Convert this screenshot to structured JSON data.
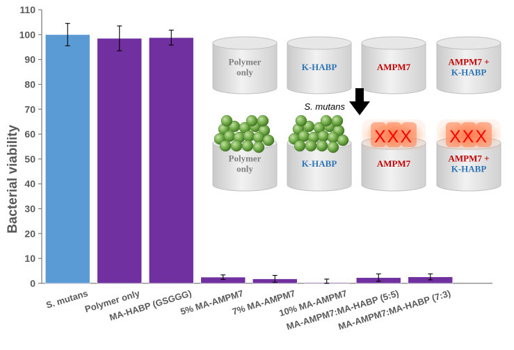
{
  "colors": {
    "control_bar": "#5b9bd5",
    "treatment_bar": "#7030a0",
    "axis": "#7f7f7f",
    "label_gray": "#7f7f7f",
    "label_blue": "#2e75b6",
    "label_red": "#c00000",
    "bacteria_green": "#70ad47",
    "x_mark": "#ff0000"
  },
  "chart_data": {
    "type": "bar",
    "ylabel": "Bacterial viability",
    "ylim": [
      0,
      110
    ],
    "yticks": [
      0,
      10,
      20,
      30,
      40,
      50,
      60,
      70,
      80,
      90,
      100,
      110
    ],
    "grid": false,
    "categories": [
      "S. mutans",
      "Polymer only",
      "MA-HABP (GSGGG)",
      "5% MA-AMPM7",
      "7% MA-AMPM7",
      "10% MA-AMPM7",
      "MA-AMPM7:MA-HABP (5:5)",
      "MA-AMPM7:MA-HABP (7:3)"
    ],
    "values": [
      100,
      98.5,
      98.8,
      2.5,
      1.8,
      0.3,
      2.3,
      2.6
    ],
    "errors": [
      4.5,
      5,
      3,
      0.9,
      1.4,
      1.4,
      1.5,
      1.2
    ],
    "bar_groups": [
      "control",
      "treatment",
      "treatment",
      "treatment",
      "treatment",
      "treatment",
      "treatment",
      "treatment"
    ]
  },
  "inset": {
    "top_row": [
      {
        "lines": [
          "Polymer",
          "only"
        ],
        "color": "gray",
        "content": "none"
      },
      {
        "lines": [
          "K-HABP"
        ],
        "color": "blue",
        "content": "none"
      },
      {
        "lines": [
          "AMPM7"
        ],
        "color": "red",
        "content": "none"
      },
      {
        "lines": [
          "AMPM7 +",
          "K-HABP"
        ],
        "color": "mixed",
        "content": "none"
      }
    ],
    "arrow_label": "S. mutans",
    "bottom_row": [
      {
        "lines": [
          "Polymer",
          "only"
        ],
        "color": "gray",
        "content": "bacteria"
      },
      {
        "lines": [
          "K-HABP"
        ],
        "color": "blue",
        "content": "bacteria"
      },
      {
        "lines": [
          "AMPM7"
        ],
        "color": "red",
        "content": "dead"
      },
      {
        "lines": [
          "AMPM7 +",
          "K-HABP"
        ],
        "color": "mixed",
        "content": "dead"
      }
    ],
    "dead_mark": "XXX"
  }
}
